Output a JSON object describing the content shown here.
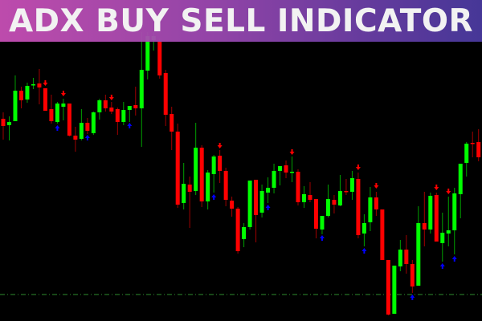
{
  "banner": {
    "title": "ADX BUY SELL INDICATOR"
  },
  "colors": {
    "background": "#000000",
    "bull": "#00ff00",
    "bull_wick": "#00a000",
    "bear": "#ff0000",
    "bear_wick": "#a00000",
    "buy_signal": "#0000ff",
    "sell_signal": "#ff0000",
    "level_line": "#2e8b2e"
  },
  "chart_data": {
    "type": "candlestick",
    "title": "ADX BUY SELL INDICATOR",
    "xlabel": "",
    "ylabel": "",
    "grid": false,
    "ylim": [
      0,
      400
    ],
    "candles_ohlc": [
      [
        252,
        260,
        226,
        243
      ],
      [
        244,
        255,
        225,
        248
      ],
      [
        249,
        306,
        249,
        287
      ],
      [
        287,
        292,
        265,
        275
      ],
      [
        276,
        297,
        272,
        293
      ],
      [
        294,
        303,
        289,
        295
      ],
      [
        296,
        314,
        270,
        291
      ],
      [
        290,
        290,
        262,
        262
      ],
      [
        264,
        282,
        246,
        249
      ],
      [
        248,
        273,
        246,
        271
      ],
      [
        267,
        277,
        250,
        271
      ],
      [
        271,
        271,
        230,
        231
      ],
      [
        231,
        242,
        211,
        226
      ],
      [
        227,
        264,
        225,
        247
      ],
      [
        247,
        253,
        233,
        237
      ],
      [
        234,
        261,
        232,
        260
      ],
      [
        260,
        277,
        251,
        275
      ],
      [
        275,
        282,
        261,
        265
      ],
      [
        266,
        273,
        258,
        261
      ],
      [
        264,
        266,
        232,
        248
      ],
      [
        248,
        273,
        244,
        263
      ],
      [
        263,
        268,
        248,
        268
      ],
      [
        269,
        292,
        256,
        265
      ],
      [
        265,
        360,
        217,
        313
      ],
      [
        312,
        360,
        301,
        355
      ],
      [
        350,
        360,
        337,
        355
      ],
      [
        348,
        352,
        302,
        306
      ],
      [
        309,
        313,
        243,
        257
      ],
      [
        258,
        267,
        213,
        236
      ],
      [
        236,
        246,
        141,
        145
      ],
      [
        147,
        197,
        139,
        171
      ],
      [
        170,
        180,
        116,
        161
      ],
      [
        162,
        247,
        157,
        216
      ],
      [
        216,
        219,
        142,
        149
      ],
      [
        149,
        188,
        139,
        185
      ],
      [
        183,
        207,
        160,
        205
      ],
      [
        206,
        213,
        172,
        187
      ],
      [
        187,
        191,
        143,
        151
      ],
      [
        150,
        155,
        130,
        140
      ],
      [
        140,
        142,
        84,
        87
      ],
      [
        102,
        122,
        92,
        117
      ],
      [
        117,
        175,
        114,
        175
      ],
      [
        176,
        176,
        98,
        132
      ],
      [
        135,
        170,
        129,
        162
      ],
      [
        160,
        179,
        147,
        166
      ],
      [
        166,
        196,
        159,
        187
      ],
      [
        187,
        193,
        169,
        193
      ],
      [
        194,
        200,
        178,
        185
      ],
      [
        185,
        205,
        173,
        186
      ],
      [
        186,
        189,
        144,
        148
      ],
      [
        148,
        168,
        141,
        158
      ],
      [
        157,
        173,
        148,
        151
      ],
      [
        152,
        152,
        103,
        115
      ],
      [
        114,
        131,
        108,
        131
      ],
      [
        131,
        170,
        129,
        152
      ],
      [
        151,
        157,
        134,
        145
      ],
      [
        144,
        182,
        143,
        162
      ],
      [
        162,
        177,
        157,
        161
      ],
      [
        161,
        187,
        151,
        178
      ],
      [
        177,
        185,
        103,
        107
      ],
      [
        109,
        133,
        93,
        122
      ],
      [
        123,
        167,
        112,
        154
      ],
      [
        154,
        161,
        131,
        139
      ],
      [
        139,
        139,
        76,
        76
      ],
      [
        76,
        76,
        7,
        8
      ],
      [
        9,
        69,
        9,
        69
      ],
      [
        68,
        101,
        62,
        89
      ],
      [
        89,
        107,
        59,
        71
      ],
      [
        71,
        76,
        35,
        43
      ],
      [
        44,
        143,
        44,
        122
      ],
      [
        122,
        161,
        93,
        114
      ],
      [
        114,
        160,
        109,
        156
      ],
      [
        157,
        160,
        99,
        99
      ],
      [
        97,
        135,
        74,
        110
      ],
      [
        109,
        155,
        93,
        113
      ],
      [
        113,
        166,
        83,
        159
      ],
      [
        158,
        196,
        128,
        196
      ],
      [
        197,
        223,
        180,
        221
      ],
      [
        222,
        236,
        204,
        221
      ],
      [
        223,
        239,
        199,
        204
      ],
      [
        204,
        206,
        170,
        188
      ]
    ],
    "signals": [
      {
        "candle": 8,
        "type": "sell",
        "price": 296
      },
      {
        "candle": 10,
        "type": "buy",
        "price": 241
      },
      {
        "candle": 11,
        "type": "sell",
        "price": 283
      },
      {
        "candle": 15,
        "type": "buy",
        "price": 229
      },
      {
        "candle": 19,
        "type": "sell",
        "price": 278
      },
      {
        "candle": 22,
        "type": "buy",
        "price": 244
      },
      {
        "candle": 36,
        "type": "buy",
        "price": 155
      },
      {
        "candle": 37,
        "type": "sell",
        "price": 218
      },
      {
        "candle": 45,
        "type": "buy",
        "price": 142
      },
      {
        "candle": 49,
        "type": "sell",
        "price": 210
      },
      {
        "candle": 54,
        "type": "buy",
        "price": 104
      },
      {
        "candle": 60,
        "type": "sell",
        "price": 191
      },
      {
        "candle": 61,
        "type": "buy",
        "price": 88
      },
      {
        "candle": 63,
        "type": "sell",
        "price": 168
      },
      {
        "candle": 69,
        "type": "buy",
        "price": 30
      },
      {
        "candle": 73,
        "type": "sell",
        "price": 166
      },
      {
        "candle": 74,
        "type": "buy",
        "price": 69
      },
      {
        "candle": 75,
        "type": "sell",
        "price": 161
      },
      {
        "candle": 76,
        "type": "buy",
        "price": 78
      }
    ],
    "horizontal_level": {
      "price": 33,
      "style": "dash-dot"
    }
  }
}
